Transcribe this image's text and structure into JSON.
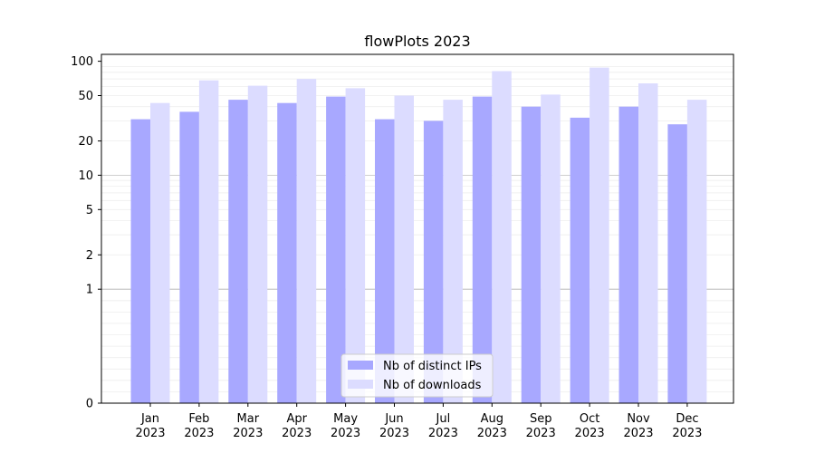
{
  "chart_data": {
    "type": "bar",
    "title": "flowPlots 2023",
    "xlabel": "",
    "ylabel": "",
    "y_scale": "symlog",
    "ylim": [
      0,
      115
    ],
    "y_ticks": [
      0,
      1,
      2,
      5,
      10,
      20,
      50,
      100
    ],
    "categories": [
      [
        "Jan",
        "2023"
      ],
      [
        "Feb",
        "2023"
      ],
      [
        "Mar",
        "2023"
      ],
      [
        "Apr",
        "2023"
      ],
      [
        "May",
        "2023"
      ],
      [
        "Jun",
        "2023"
      ],
      [
        "Jul",
        "2023"
      ],
      [
        "Aug",
        "2023"
      ],
      [
        "Sep",
        "2023"
      ],
      [
        "Oct",
        "2023"
      ],
      [
        "Nov",
        "2023"
      ],
      [
        "Dec",
        "2023"
      ]
    ],
    "series": [
      {
        "name": "Nb of distinct IPs",
        "color": "#a8a8ff",
        "values": [
          31,
          36,
          46,
          43,
          49,
          31,
          30,
          49,
          40,
          32,
          40,
          28
        ]
      },
      {
        "name": "Nb of downloads",
        "color": "#dcdcff",
        "values": [
          43,
          68,
          61,
          70,
          58,
          50,
          46,
          82,
          51,
          88,
          64,
          46
        ]
      }
    ],
    "grid": "major lines at 1 and 10, light minor lines",
    "legend_position": "lower center"
  }
}
